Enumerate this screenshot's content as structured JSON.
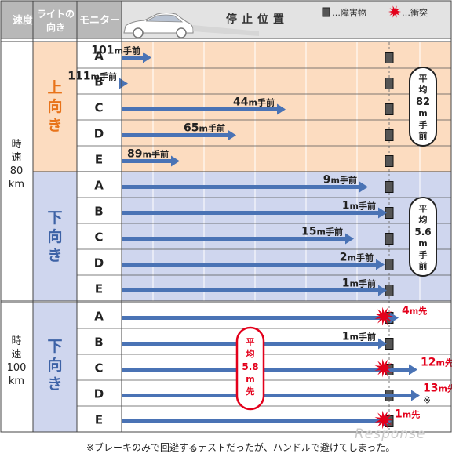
{
  "header": {
    "speed": "速度",
    "light_line1": "ライトの",
    "light_line2": "向き",
    "monitor": "モニター",
    "stop_position": "停止位置",
    "legend_obstacle": "…障害物",
    "legend_collision": "…衝突"
  },
  "groups": [
    {
      "speed_line1": "時",
      "speed_line2": "速",
      "speed_line3": "80",
      "speed_line4": "km",
      "light_line1": "上",
      "light_line2": "向",
      "light_line3": "き"
    },
    {
      "light_line1": "下",
      "light_line2": "向",
      "light_line3": "き"
    },
    {
      "speed_line1": "時",
      "speed_line2": "速",
      "speed_line3": "100",
      "speed_line4": "km",
      "light_line1": "下",
      "light_line2": "向",
      "light_line3": "き"
    }
  ],
  "averages": [
    {
      "line1": "平",
      "line2": "均",
      "line3": "82",
      "line4": "m",
      "line5": "手",
      "line6": "前"
    },
    {
      "line1": "平",
      "line2": "均",
      "line3": "5.6",
      "line4": "m",
      "line5": "手",
      "line6": "前"
    },
    {
      "line1": "平",
      "line2": "均",
      "line3": "5.8",
      "line4": "m",
      "line5": "先"
    }
  ],
  "footnote": "※ブレーキのみで回避するテストだったが、ハンドルで避けてしまった。",
  "watermark": "Response",
  "chart_data": {
    "type": "bar",
    "title": "停止位置",
    "categories": [
      "A",
      "B",
      "C",
      "D",
      "E",
      "A",
      "B",
      "C",
      "D",
      "E",
      "A",
      "B",
      "C",
      "D",
      "E"
    ],
    "series": [
      {
        "name": "上向き 時速80km",
        "values": [
          {
            "monitor": "A",
            "distance_m": 101,
            "label": "101",
            "unit": "m手前"
          },
          {
            "monitor": "B",
            "distance_m": 111,
            "label": "111",
            "unit": "m手前"
          },
          {
            "monitor": "C",
            "distance_m": 44,
            "label": "44",
            "unit": "m手前"
          },
          {
            "monitor": "D",
            "distance_m": 65,
            "label": "65",
            "unit": "m手前"
          },
          {
            "monitor": "E",
            "distance_m": 89,
            "label": "89",
            "unit": "m手前"
          }
        ]
      },
      {
        "name": "下向き 時速80km",
        "values": [
          {
            "monitor": "A",
            "distance_m": 9,
            "label": "9",
            "unit": "m手前"
          },
          {
            "monitor": "B",
            "distance_m": 1,
            "label": "1",
            "unit": "m手前"
          },
          {
            "monitor": "C",
            "distance_m": 15,
            "label": "15",
            "unit": "m手前"
          },
          {
            "monitor": "D",
            "distance_m": 2,
            "label": "2",
            "unit": "m手前"
          },
          {
            "monitor": "E",
            "distance_m": 1,
            "label": "1",
            "unit": "m手前"
          }
        ]
      },
      {
        "name": "下向き 時速100km",
        "values": [
          {
            "monitor": "A",
            "distance_m": -4,
            "label": "4",
            "unit": "m先",
            "collision": true
          },
          {
            "monitor": "B",
            "distance_m": 1,
            "label": "1",
            "unit": "m手前"
          },
          {
            "monitor": "C",
            "distance_m": -12,
            "label": "12",
            "unit": "m先",
            "collision": true
          },
          {
            "monitor": "D",
            "distance_m": -13,
            "label": "13",
            "unit": "m先",
            "note": "※"
          },
          {
            "monitor": "E",
            "distance_m": -1,
            "label": "1",
            "unit": "m先",
            "collision": true
          }
        ]
      }
    ],
    "colors": {
      "arrow": "#4a73b5",
      "upper_band": "#fcdcc0",
      "lower_band": "#cfd6ee",
      "collision": "#e3001b",
      "obstacle": "#555555"
    }
  }
}
